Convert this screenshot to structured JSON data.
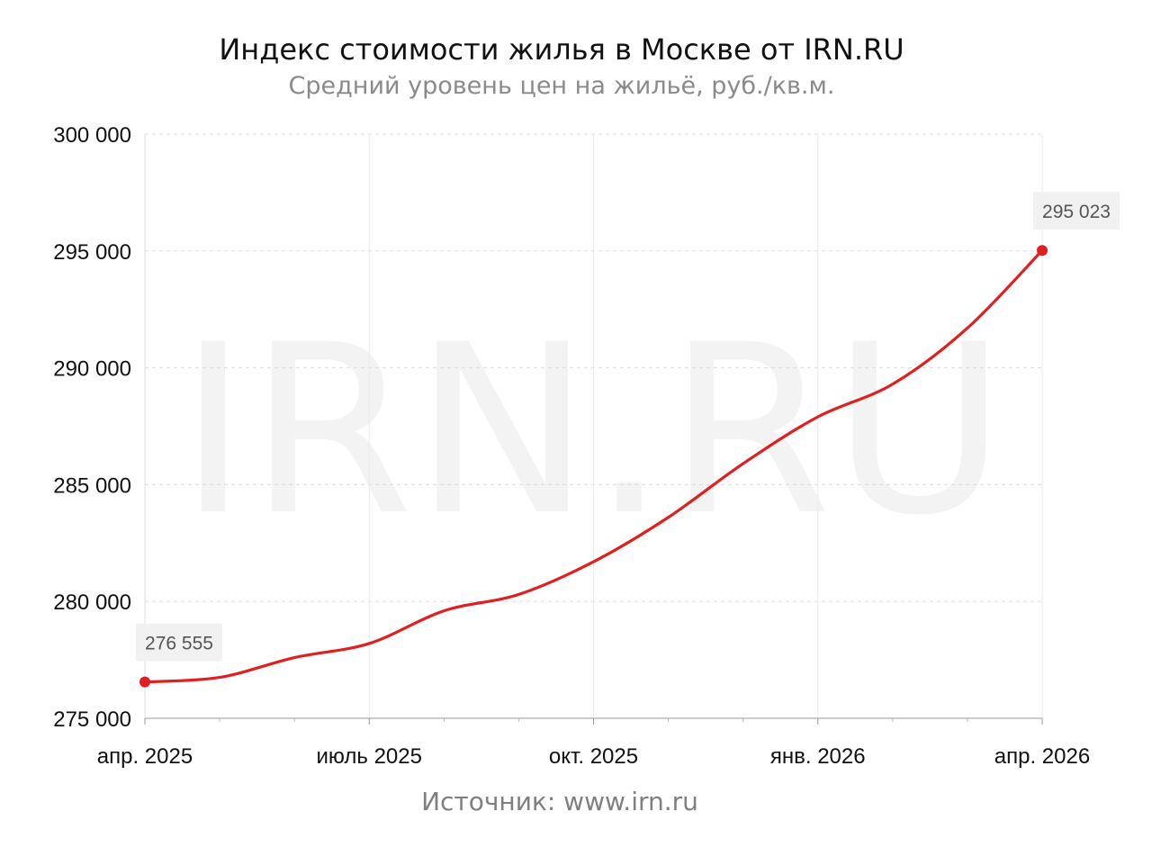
{
  "title": "Индекс стоимости жилья в Москве от IRN.RU",
  "subtitle": "Средний уровень цен на жильё, руб./кв.м.",
  "source": "Источник: www.irn.ru",
  "watermark": "IRN.RU",
  "chart_data": {
    "type": "line",
    "title": "Индекс стоимости жилья в Москве от IRN.RU",
    "subtitle": "Средний уровень цен на жильё, руб./кв.м.",
    "xlabel": "",
    "ylabel": "",
    "x_ticks": [
      "апр. 2025",
      "июль 2025",
      "окт. 2025",
      "янв. 2026",
      "апр. 2026"
    ],
    "y_ticks": [
      "300 000",
      "295 000",
      "290 000",
      "285 000",
      "280 000",
      "275 000"
    ],
    "y_tick_values": [
      300000,
      295000,
      290000,
      285000,
      280000,
      275000
    ],
    "ylim": [
      275000,
      300000
    ],
    "xlim": [
      "2025-04",
      "2026-04"
    ],
    "grid": true,
    "color": "#e02020",
    "series": [
      {
        "x": [
          "2025-04",
          "2025-05",
          "2025-06",
          "2025-07",
          "2025-08",
          "2025-09",
          "2025-10",
          "2025-11",
          "2025-12",
          "2026-01",
          "2026-02",
          "2026-03",
          "2026-04"
        ],
        "values": [
          276555,
          276750,
          277600,
          278200,
          279600,
          280300,
          281700,
          283600,
          285900,
          287900,
          289300,
          291700,
          295023
        ]
      }
    ],
    "annotations": [
      {
        "x": "2025-04",
        "text": "276 555"
      },
      {
        "x": "2026-04",
        "text": "295 023"
      }
    ]
  }
}
